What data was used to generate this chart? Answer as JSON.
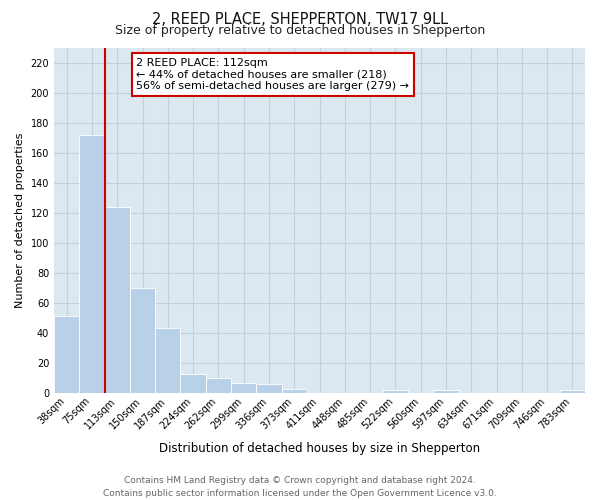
{
  "title": "2, REED PLACE, SHEPPERTON, TW17 9LL",
  "subtitle": "Size of property relative to detached houses in Shepperton",
  "xlabel": "Distribution of detached houses by size in Shepperton",
  "ylabel": "Number of detached properties",
  "bar_labels": [
    "38sqm",
    "75sqm",
    "113sqm",
    "150sqm",
    "187sqm",
    "224sqm",
    "262sqm",
    "299sqm",
    "336sqm",
    "373sqm",
    "411sqm",
    "448sqm",
    "485sqm",
    "522sqm",
    "560sqm",
    "597sqm",
    "634sqm",
    "671sqm",
    "709sqm",
    "746sqm",
    "783sqm"
  ],
  "bar_heights": [
    51,
    172,
    124,
    70,
    43,
    13,
    10,
    7,
    6,
    3,
    0,
    0,
    0,
    2,
    0,
    2,
    0,
    0,
    0,
    0,
    2
  ],
  "bar_color": "#b8d0e8",
  "highlight_bar_index": 2,
  "highlight_color": "#cc0000",
  "ylim": [
    0,
    230
  ],
  "yticks": [
    0,
    20,
    40,
    60,
    80,
    100,
    120,
    140,
    160,
    180,
    200,
    220
  ],
  "annotation_title": "2 REED PLACE: 112sqm",
  "annotation_line1": "← 44% of detached houses are smaller (218)",
  "annotation_line2": "56% of semi-detached houses are larger (279) →",
  "annotation_box_facecolor": "#ffffff",
  "annotation_box_edgecolor": "#cc0000",
  "footer_line1": "Contains HM Land Registry data © Crown copyright and database right 2024.",
  "footer_line2": "Contains public sector information licensed under the Open Government Licence v3.0.",
  "plot_bg_color": "#dce8f0",
  "fig_bg_color": "#ffffff",
  "grid_color": "#c0d0e0",
  "title_fontsize": 10.5,
  "subtitle_fontsize": 9,
  "xlabel_fontsize": 8.5,
  "ylabel_fontsize": 8,
  "tick_fontsize": 7,
  "footer_fontsize": 6.5,
  "ann_fontsize": 8
}
